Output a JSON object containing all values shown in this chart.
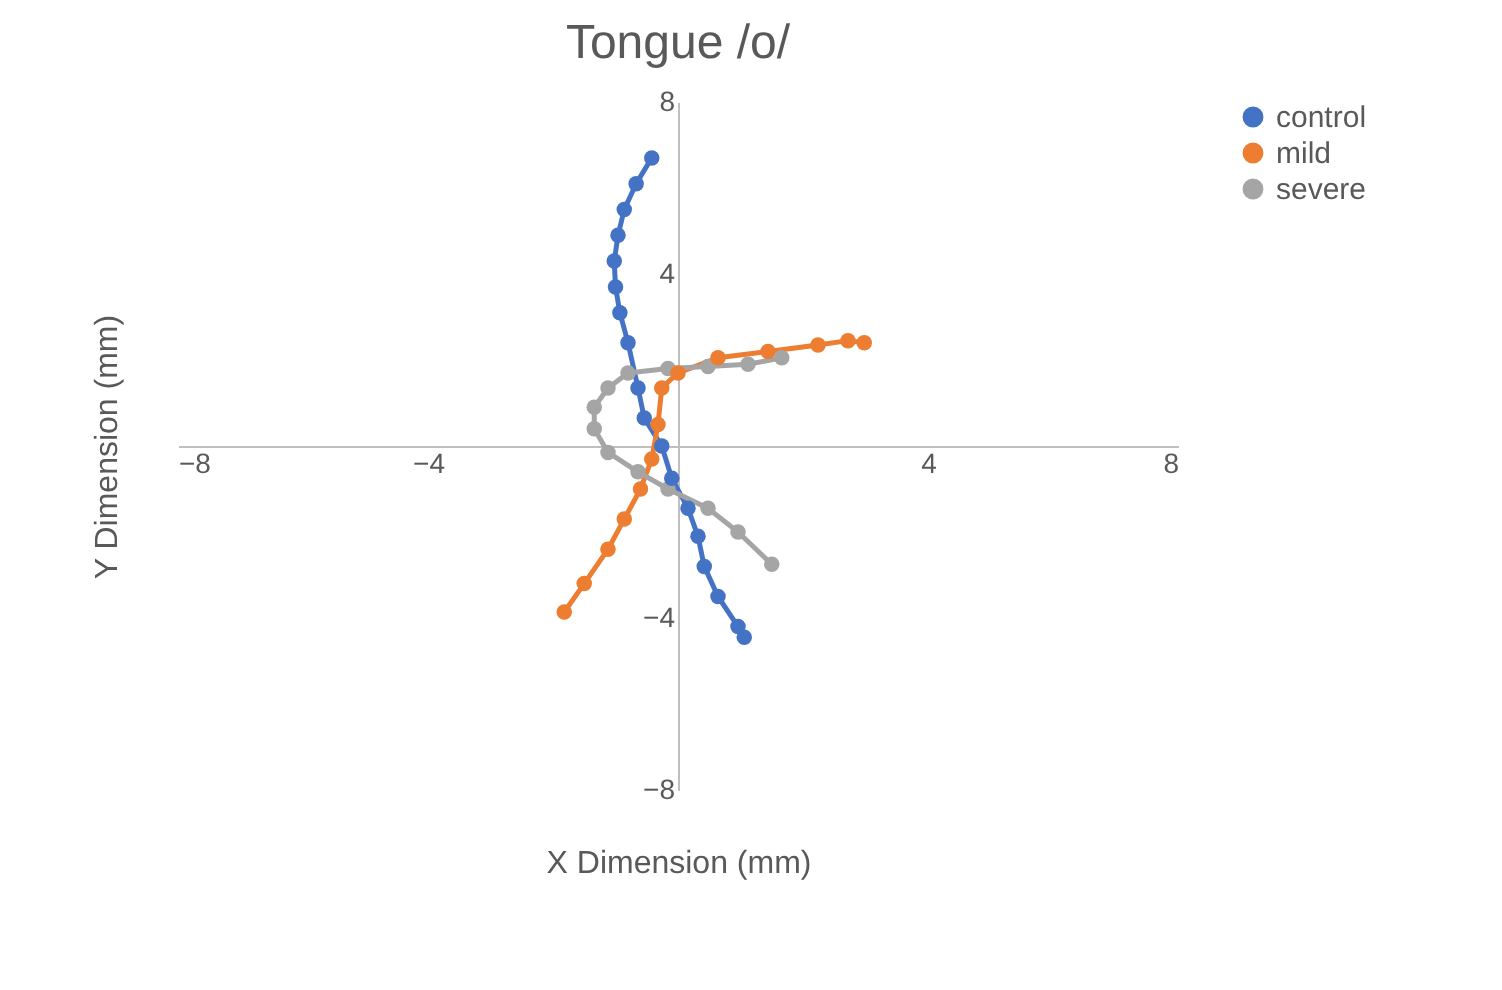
{
  "chart_data": {
    "type": "line",
    "title": "Tongue /o/",
    "xlabel": "X Dimension (mm)",
    "ylabel": "Y Dimension (mm)",
    "xlim": [
      -8,
      8
    ],
    "ylim": [
      -8,
      8
    ],
    "xticks": [
      -8,
      -4,
      4,
      8
    ],
    "yticks": [
      -8,
      -4,
      4,
      8
    ],
    "grid": false,
    "legend": "right",
    "marker": "circle",
    "series": [
      {
        "name": "control",
        "color": "#4472c4",
        "x": [
          -0.42,
          -0.67,
          -0.86,
          -0.96,
          -1.02,
          -1.0,
          -0.93,
          -0.8,
          -0.64,
          -0.54,
          -0.26,
          -0.1,
          0.16,
          0.32,
          0.42,
          0.64,
          0.96,
          1.06
        ],
        "values": [
          6.7,
          6.1,
          5.5,
          4.9,
          4.3,
          3.7,
          3.1,
          2.4,
          1.35,
          0.65,
          0,
          -0.75,
          -1.45,
          -2.1,
          -2.8,
          -3.5,
          -4.2,
          -4.45
        ]
      },
      {
        "name": "mild",
        "color": "#ed7d31",
        "x": [
          -1.82,
          -1.5,
          -1.12,
          -0.86,
          -0.6,
          -0.42,
          -0.32,
          -0.26,
          0,
          0.64,
          1.44,
          2.24,
          2.72,
          2.98
        ],
        "values": [
          -3.86,
          -3.2,
          -2.4,
          -1.7,
          -1.0,
          -0.3,
          0.5,
          1.35,
          1.7,
          2.05,
          2.2,
          2.35,
          2.45,
          2.4
        ]
      },
      {
        "name": "severe",
        "color": "#a5a5a5",
        "x": [
          1.66,
          1.12,
          0.48,
          -0.16,
          -0.8,
          -1.12,
          -1.34,
          -1.34,
          -1.12,
          -0.64,
          -0.16,
          0.48,
          0.96,
          1.5
        ],
        "values": [
          2.05,
          1.9,
          1.85,
          1.8,
          1.7,
          1.35,
          0.9,
          0.4,
          -0.15,
          -0.6,
          -1.0,
          -1.45,
          -2.0,
          -2.75
        ]
      }
    ]
  }
}
